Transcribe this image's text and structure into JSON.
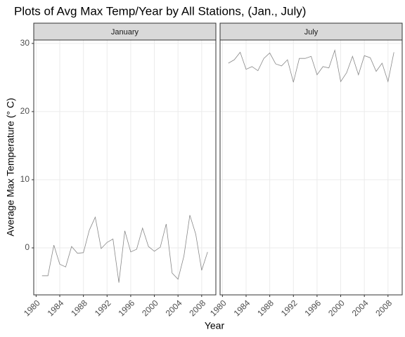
{
  "title": "Plots of Avg Max Temp/Year by All Stations, (Jan., July)",
  "x_label": "Year",
  "y_label": "Average Max Temperature (° C)",
  "chart_data": [
    {
      "type": "line",
      "facet": "January",
      "color": "#888888",
      "x": [
        1981,
        1982,
        1983,
        1984,
        1985,
        1986,
        1987,
        1988,
        1989,
        1990,
        1991,
        1992,
        1993,
        1994,
        1995,
        1996,
        1997,
        1998,
        1999,
        2000,
        2001,
        2002,
        2003,
        2004,
        2005,
        2006,
        2007,
        2008,
        2009
      ],
      "values": [
        -4.1,
        -4.1,
        0.4,
        -2.4,
        -2.8,
        0.2,
        -0.8,
        -0.7,
        2.6,
        4.5,
        -0.1,
        0.8,
        1.3,
        -5.1,
        2.5,
        -0.6,
        -0.2,
        2.9,
        0.2,
        -0.5,
        0.1,
        3.5,
        -3.7,
        -4.6,
        -1.2,
        4.8,
        2.0,
        -3.3,
        -0.6
      ],
      "xlim": [
        1979.6,
        2010.4
      ],
      "xticks": [
        1980,
        1984,
        1988,
        1992,
        1996,
        2000,
        2004,
        2008
      ],
      "ylim": [
        -6.9,
        30.5
      ],
      "yticks": [
        0,
        10,
        20,
        30
      ],
      "grid": true
    },
    {
      "type": "line",
      "facet": "July",
      "color": "#888888",
      "x": [
        1981,
        1982,
        1983,
        1984,
        1985,
        1986,
        1987,
        1988,
        1989,
        1990,
        1991,
        1992,
        1993,
        1994,
        1995,
        1996,
        1997,
        1998,
        1999,
        2000,
        2001,
        2002,
        2003,
        2004,
        2005,
        2006,
        2007,
        2008,
        2009
      ],
      "values": [
        27.1,
        27.6,
        28.7,
        26.2,
        26.6,
        26.0,
        27.8,
        28.6,
        27.0,
        26.7,
        27.6,
        24.3,
        27.8,
        27.8,
        28.1,
        25.4,
        26.6,
        26.4,
        29.0,
        24.4,
        25.7,
        28.1,
        25.4,
        28.2,
        27.9,
        25.9,
        27.1,
        24.4,
        28.7
      ],
      "xlim": [
        1979.6,
        2010.4
      ],
      "xticks": [
        1980,
        1984,
        1988,
        1992,
        1996,
        2000,
        2004,
        2008
      ],
      "ylim": [
        -6.9,
        30.5
      ],
      "yticks": [
        0,
        10,
        20,
        30
      ],
      "grid": true
    }
  ]
}
